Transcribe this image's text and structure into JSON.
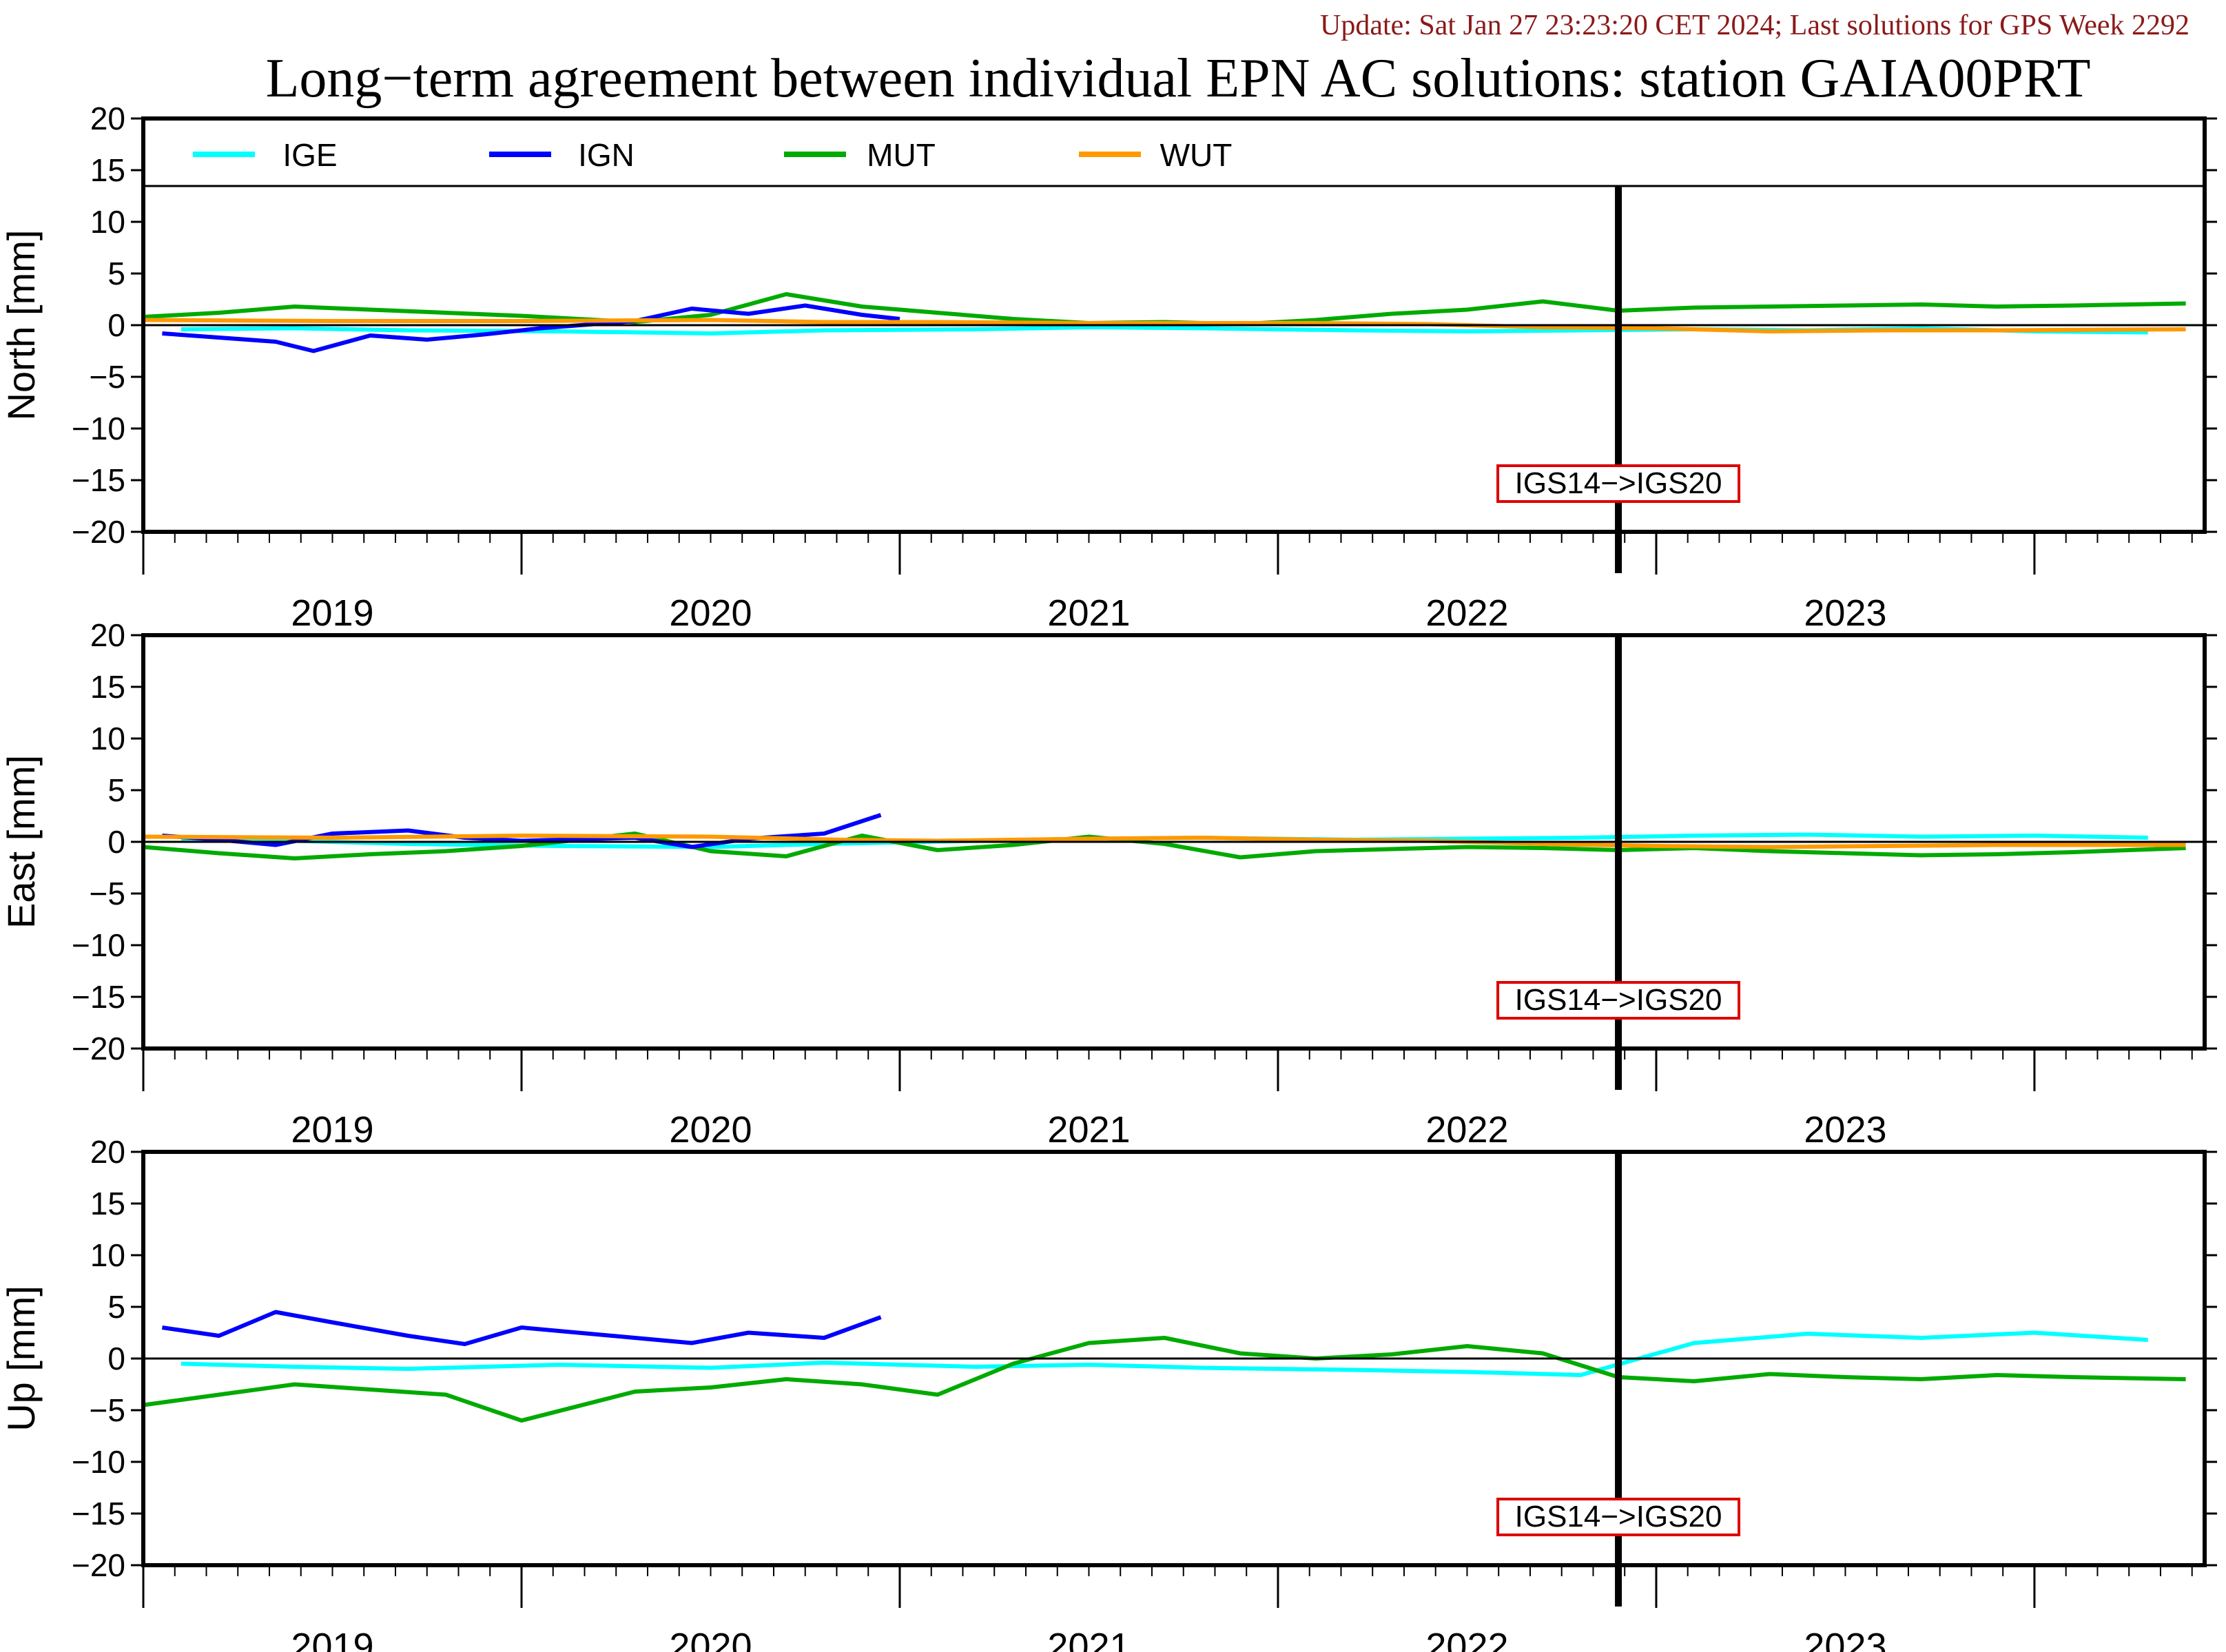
{
  "header": {
    "update_text": "Update: Sat Jan 27 23:23:20 CET 2024; Last solutions for GPS Week 2292",
    "title": "Long−term agreement between individual EPN AC solutions: station GAIA00PRT"
  },
  "colors": {
    "IGE": "#00ffff",
    "IGN": "#0000ff",
    "MUT": "#00aa00",
    "WUT": "#ff9900",
    "annotation_border": "#dd0000"
  },
  "chart_data": {
    "type": "line",
    "legend": {
      "placement": "top inside first panel",
      "entries": [
        "IGE",
        "IGN",
        "MUT",
        "WUT"
      ]
    },
    "x_axis": {
      "range": [
        2018.5,
        2023.95
      ],
      "year_labels": [
        "2019",
        "2020",
        "2021",
        "2022",
        "2023"
      ],
      "year_label_positions": [
        2019.0,
        2020.0,
        2021.0,
        2022.0,
        2023.0
      ],
      "major_ticks": [
        2018.5,
        2019.5,
        2020.5,
        2021.5,
        2022.5,
        2023.5
      ]
    },
    "y_ticks": [
      "20",
      "15",
      "10",
      "5",
      "0",
      "−5",
      "−10",
      "−15",
      "−20"
    ],
    "y_tick_values": [
      20,
      15,
      10,
      5,
      0,
      -5,
      -10,
      -15,
      -20
    ],
    "ylim": [
      -20,
      20
    ],
    "reference_frame_change": {
      "x": 2022.4,
      "label": "IGS14−>IGS20"
    },
    "panels": [
      {
        "ylabel": "North [mm]",
        "series": [
          {
            "name": "IGE",
            "points": [
              [
                2018.6,
                -0.4
              ],
              [
                2018.9,
                -0.3
              ],
              [
                2019.2,
                -0.5
              ],
              [
                2019.6,
                -0.6
              ],
              [
                2020.0,
                -0.8
              ],
              [
                2020.3,
                -0.5
              ],
              [
                2020.7,
                -0.4
              ],
              [
                2021.0,
                -0.2
              ],
              [
                2021.3,
                -0.3
              ],
              [
                2021.7,
                -0.5
              ],
              [
                2022.0,
                -0.6
              ],
              [
                2022.3,
                -0.5
              ],
              [
                2022.6,
                -0.4
              ],
              [
                2022.9,
                -0.5
              ],
              [
                2023.2,
                -0.3
              ],
              [
                2023.5,
                -0.6
              ],
              [
                2023.8,
                -0.7
              ]
            ]
          },
          {
            "name": "IGN",
            "points": [
              [
                2018.55,
                -0.8
              ],
              [
                2018.7,
                -1.2
              ],
              [
                2018.85,
                -1.6
              ],
              [
                2018.95,
                -2.5
              ],
              [
                2019.1,
                -1.0
              ],
              [
                2019.25,
                -1.4
              ],
              [
                2019.4,
                -0.9
              ],
              [
                2019.55,
                -0.3
              ],
              [
                2019.8,
                0.4
              ],
              [
                2019.95,
                1.6
              ],
              [
                2020.1,
                1.1
              ],
              [
                2020.25,
                1.9
              ],
              [
                2020.4,
                1.0
              ],
              [
                2020.5,
                0.6
              ]
            ]
          },
          {
            "name": "MUT",
            "points": [
              [
                2018.5,
                0.8
              ],
              [
                2018.7,
                1.2
              ],
              [
                2018.9,
                1.8
              ],
              [
                2019.1,
                1.5
              ],
              [
                2019.3,
                1.2
              ],
              [
                2019.5,
                0.9
              ],
              [
                2019.8,
                0.3
              ],
              [
                2020.0,
                1.0
              ],
              [
                2020.2,
                3.0
              ],
              [
                2020.4,
                1.8
              ],
              [
                2020.6,
                1.2
              ],
              [
                2020.8,
                0.6
              ],
              [
                2021.0,
                0.2
              ],
              [
                2021.2,
                0.3
              ],
              [
                2021.4,
                0.1
              ],
              [
                2021.6,
                0.5
              ],
              [
                2021.8,
                1.1
              ],
              [
                2022.0,
                1.5
              ],
              [
                2022.2,
                2.3
              ],
              [
                2022.4,
                1.4
              ],
              [
                2022.6,
                1.7
              ],
              [
                2022.8,
                1.8
              ],
              [
                2023.0,
                1.9
              ],
              [
                2023.2,
                2.0
              ],
              [
                2023.4,
                1.8
              ],
              [
                2023.6,
                1.9
              ],
              [
                2023.9,
                2.1
              ]
            ]
          },
          {
            "name": "WUT",
            "points": [
              [
                2018.5,
                0.5
              ],
              [
                2019.0,
                0.4
              ],
              [
                2019.5,
                0.4
              ],
              [
                2020.0,
                0.5
              ],
              [
                2020.3,
                0.3
              ],
              [
                2020.6,
                0.3
              ],
              [
                2021.0,
                0.2
              ],
              [
                2021.3,
                0.2
              ],
              [
                2021.6,
                0.2
              ],
              [
                2021.9,
                0.1
              ],
              [
                2022.2,
                -0.2
              ],
              [
                2022.5,
                -0.3
              ],
              [
                2022.8,
                -0.6
              ],
              [
                2023.1,
                -0.5
              ],
              [
                2023.4,
                -0.5
              ],
              [
                2023.9,
                -0.4
              ]
            ]
          }
        ]
      },
      {
        "ylabel": "East [mm]",
        "series": [
          {
            "name": "IGE",
            "points": [
              [
                2018.6,
                0.2
              ],
              [
                2018.9,
                0.1
              ],
              [
                2019.2,
                -0.2
              ],
              [
                2019.6,
                -0.4
              ],
              [
                2020.0,
                -0.5
              ],
              [
                2020.3,
                -0.2
              ],
              [
                2020.7,
                0.1
              ],
              [
                2021.0,
                0.3
              ],
              [
                2021.3,
                0.4
              ],
              [
                2021.7,
                0.2
              ],
              [
                2022.0,
                0.3
              ],
              [
                2022.3,
                0.4
              ],
              [
                2022.6,
                0.6
              ],
              [
                2022.9,
                0.7
              ],
              [
                2023.2,
                0.5
              ],
              [
                2023.5,
                0.6
              ],
              [
                2023.8,
                0.4
              ]
            ]
          },
          {
            "name": "IGN",
            "points": [
              [
                2018.55,
                0.6
              ],
              [
                2018.7,
                0.2
              ],
              [
                2018.85,
                -0.3
              ],
              [
                2019.0,
                0.8
              ],
              [
                2019.2,
                1.1
              ],
              [
                2019.35,
                0.4
              ],
              [
                2019.5,
                0.1
              ],
              [
                2019.8,
                0.4
              ],
              [
                2019.95,
                -0.5
              ],
              [
                2020.1,
                0.3
              ],
              [
                2020.3,
                0.8
              ],
              [
                2020.45,
                2.6
              ]
            ]
          },
          {
            "name": "MUT",
            "points": [
              [
                2018.5,
                -0.5
              ],
              [
                2018.7,
                -1.1
              ],
              [
                2018.9,
                -1.6
              ],
              [
                2019.1,
                -1.2
              ],
              [
                2019.3,
                -0.9
              ],
              [
                2019.5,
                -0.4
              ],
              [
                2019.8,
                0.8
              ],
              [
                2020.0,
                -0.9
              ],
              [
                2020.2,
                -1.4
              ],
              [
                2020.4,
                0.6
              ],
              [
                2020.6,
                -0.8
              ],
              [
                2020.8,
                -0.3
              ],
              [
                2021.0,
                0.5
              ],
              [
                2021.2,
                -0.2
              ],
              [
                2021.4,
                -1.5
              ],
              [
                2021.6,
                -0.9
              ],
              [
                2021.8,
                -0.7
              ],
              [
                2022.0,
                -0.5
              ],
              [
                2022.2,
                -0.6
              ],
              [
                2022.4,
                -0.8
              ],
              [
                2022.6,
                -0.6
              ],
              [
                2022.8,
                -0.9
              ],
              [
                2023.0,
                -1.1
              ],
              [
                2023.2,
                -1.3
              ],
              [
                2023.4,
                -1.2
              ],
              [
                2023.6,
                -1.0
              ],
              [
                2023.9,
                -0.6
              ]
            ]
          },
          {
            "name": "WUT",
            "points": [
              [
                2018.5,
                0.5
              ],
              [
                2019.0,
                0.4
              ],
              [
                2019.5,
                0.6
              ],
              [
                2020.0,
                0.5
              ],
              [
                2020.35,
                0.2
              ],
              [
                2020.6,
                0.1
              ],
              [
                2021.0,
                0.3
              ],
              [
                2021.3,
                0.4
              ],
              [
                2021.6,
                0.2
              ],
              [
                2021.9,
                0.1
              ],
              [
                2022.2,
                -0.2
              ],
              [
                2022.5,
                -0.4
              ],
              [
                2022.8,
                -0.5
              ],
              [
                2023.1,
                -0.4
              ],
              [
                2023.4,
                -0.3
              ],
              [
                2023.9,
                -0.3
              ]
            ]
          }
        ]
      },
      {
        "ylabel": "Up [mm]",
        "series": [
          {
            "name": "IGE",
            "points": [
              [
                2018.6,
                -0.5
              ],
              [
                2018.9,
                -0.8
              ],
              [
                2019.2,
                -1.0
              ],
              [
                2019.6,
                -0.6
              ],
              [
                2020.0,
                -0.9
              ],
              [
                2020.3,
                -0.4
              ],
              [
                2020.7,
                -0.8
              ],
              [
                2021.0,
                -0.6
              ],
              [
                2021.3,
                -0.9
              ],
              [
                2021.7,
                -1.1
              ],
              [
                2022.0,
                -1.3
              ],
              [
                2022.3,
                -1.6
              ],
              [
                2022.6,
                1.5
              ],
              [
                2022.9,
                2.4
              ],
              [
                2023.2,
                2.0
              ],
              [
                2023.5,
                2.5
              ],
              [
                2023.8,
                1.8
              ]
            ]
          },
          {
            "name": "IGN",
            "points": [
              [
                2018.55,
                3.0
              ],
              [
                2018.7,
                2.2
              ],
              [
                2018.85,
                4.5
              ],
              [
                2019.0,
                3.5
              ],
              [
                2019.2,
                2.2
              ],
              [
                2019.35,
                1.4
              ],
              [
                2019.5,
                3.0
              ],
              [
                2019.8,
                2.0
              ],
              [
                2019.95,
                1.5
              ],
              [
                2020.1,
                2.5
              ],
              [
                2020.3,
                2.0
              ],
              [
                2020.45,
                4.0
              ]
            ]
          },
          {
            "name": "MUT",
            "points": [
              [
                2018.5,
                -4.5
              ],
              [
                2018.7,
                -3.5
              ],
              [
                2018.9,
                -2.5
              ],
              [
                2019.1,
                -3.0
              ],
              [
                2019.3,
                -3.5
              ],
              [
                2019.5,
                -6.0
              ],
              [
                2019.8,
                -3.2
              ],
              [
                2020.0,
                -2.8
              ],
              [
                2020.2,
                -2.0
              ],
              [
                2020.4,
                -2.5
              ],
              [
                2020.6,
                -3.5
              ],
              [
                2020.8,
                -0.5
              ],
              [
                2021.0,
                1.5
              ],
              [
                2021.2,
                2.0
              ],
              [
                2021.4,
                0.5
              ],
              [
                2021.6,
                0.0
              ],
              [
                2021.8,
                0.4
              ],
              [
                2022.0,
                1.2
              ],
              [
                2022.2,
                0.5
              ],
              [
                2022.4,
                -1.8
              ],
              [
                2022.6,
                -2.2
              ],
              [
                2022.8,
                -1.5
              ],
              [
                2023.0,
                -1.8
              ],
              [
                2023.2,
                -2.0
              ],
              [
                2023.4,
                -1.6
              ],
              [
                2023.6,
                -1.8
              ],
              [
                2023.9,
                -2.0
              ]
            ]
          },
          {
            "name": "WUT",
            "points": []
          }
        ]
      }
    ]
  }
}
